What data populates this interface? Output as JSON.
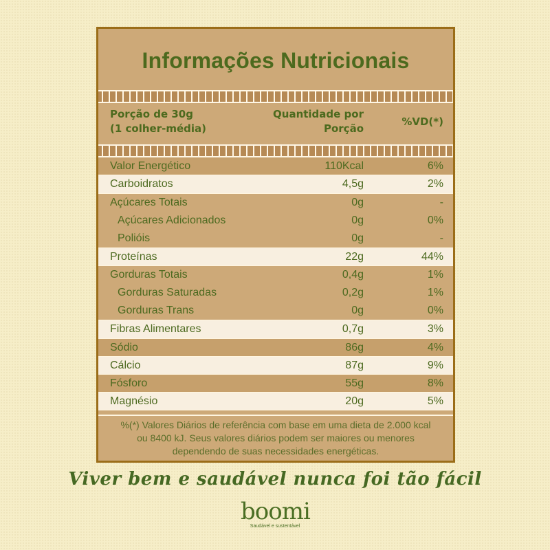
{
  "panel": {
    "title": "Informações Nutricionais",
    "header": {
      "portion_line1": "Porção de 30g",
      "portion_line2": "(1 colher-média)",
      "qty_line1": "Quantidade por",
      "qty_line2": "Porção",
      "vd": "%VD(*)"
    },
    "rows": [
      {
        "name": "Valor Energético",
        "qty": "110Kcal",
        "vd": "6%"
      },
      {
        "name": "Carboidratos",
        "qty": "4,5g",
        "vd": "2%"
      },
      {
        "name": "Açúcares Totais",
        "qty": "0g",
        "vd": "-"
      },
      {
        "name": "Açúcares Adicionados",
        "qty": "0g",
        "vd": "0%"
      },
      {
        "name": "Polióis",
        "qty": "0g",
        "vd": "-"
      },
      {
        "name": "Proteínas",
        "qty": "22g",
        "vd": "44%"
      },
      {
        "name": "Gorduras Totais",
        "qty": "0,4g",
        "vd": "1%"
      },
      {
        "name": "Gorduras Saturadas",
        "qty": "0,2g",
        "vd": "1%"
      },
      {
        "name": "Gorduras Trans",
        "qty": "0g",
        "vd": "0%"
      },
      {
        "name": "Fibras Alimentares",
        "qty": "0,7g",
        "vd": "3%"
      },
      {
        "name": "Sódio",
        "qty": "86g",
        "vd": "4%"
      },
      {
        "name": "Cálcio",
        "qty": "87g",
        "vd": "9%"
      },
      {
        "name": "Fósforo",
        "qty": "55g",
        "vd": "8%"
      },
      {
        "name": "Magnésio",
        "qty": "20g",
        "vd": "5%"
      }
    ],
    "footnote": {
      "line1": "%(*) Valores Diários de referência com base em uma dieta de 2.000 kcal",
      "line2": "ou 8400 kJ. Seus valores diários podem ser maiores ou menores",
      "line3": "dependendo de suas necessidades energéticas."
    }
  },
  "slogan": "Viver bem e saudável nunca foi tão fácil",
  "logo": {
    "word": "boomi",
    "tagline": "Saudável e sustentável"
  },
  "colors": {
    "background": "#f6eec8",
    "panel": "#cda978",
    "border": "#9b6d18",
    "text_green": "#4c6a1e",
    "light_row": "#f8efe0"
  }
}
